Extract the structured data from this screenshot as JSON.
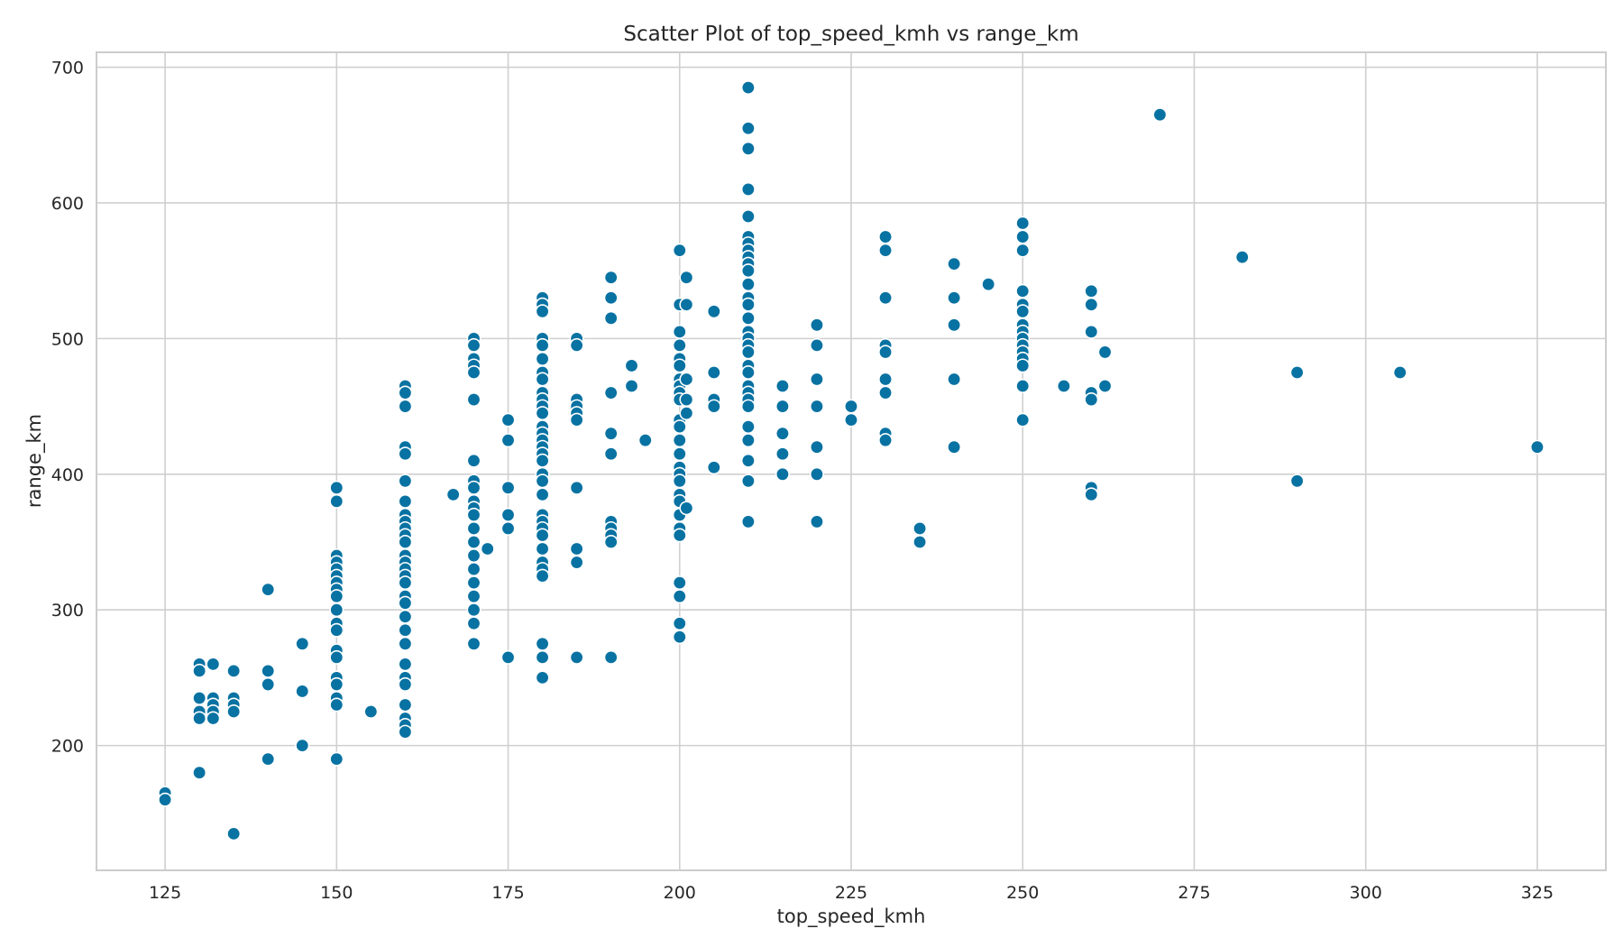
{
  "chart_data": {
    "type": "scatter",
    "title": "Scatter Plot of top_speed_kmh vs range_km",
    "xlabel": "top_speed_kmh",
    "ylabel": "range_km",
    "xlim": [
      115,
      335
    ],
    "ylim": [
      108,
      711
    ],
    "xticks": [
      125,
      150,
      175,
      200,
      225,
      250,
      275,
      300,
      325
    ],
    "yticks": [
      200,
      300,
      400,
      500,
      600,
      700
    ],
    "grid": true,
    "color": "#0872a2",
    "points": [
      [
        125,
        165
      ],
      [
        125,
        160
      ],
      [
        130,
        260
      ],
      [
        130,
        255
      ],
      [
        130,
        235
      ],
      [
        130,
        225
      ],
      [
        130,
        220
      ],
      [
        130,
        180
      ],
      [
        132,
        260
      ],
      [
        132,
        235
      ],
      [
        132,
        230
      ],
      [
        132,
        225
      ],
      [
        132,
        220
      ],
      [
        135,
        255
      ],
      [
        135,
        235
      ],
      [
        135,
        230
      ],
      [
        135,
        225
      ],
      [
        135,
        135
      ],
      [
        140,
        315
      ],
      [
        140,
        255
      ],
      [
        140,
        245
      ],
      [
        140,
        190
      ],
      [
        145,
        275
      ],
      [
        145,
        240
      ],
      [
        145,
        200
      ],
      [
        150,
        390
      ],
      [
        150,
        380
      ],
      [
        150,
        340
      ],
      [
        150,
        335
      ],
      [
        150,
        330
      ],
      [
        150,
        325
      ],
      [
        150,
        320
      ],
      [
        150,
        315
      ],
      [
        150,
        310
      ],
      [
        150,
        300
      ],
      [
        150,
        290
      ],
      [
        150,
        285
      ],
      [
        150,
        270
      ],
      [
        150,
        265
      ],
      [
        150,
        250
      ],
      [
        150,
        245
      ],
      [
        150,
        235
      ],
      [
        150,
        230
      ],
      [
        150,
        190
      ],
      [
        155,
        225
      ],
      [
        160,
        465
      ],
      [
        160,
        460
      ],
      [
        160,
        450
      ],
      [
        160,
        420
      ],
      [
        160,
        415
      ],
      [
        160,
        395
      ],
      [
        160,
        380
      ],
      [
        160,
        370
      ],
      [
        160,
        365
      ],
      [
        160,
        360
      ],
      [
        160,
        355
      ],
      [
        160,
        350
      ],
      [
        160,
        340
      ],
      [
        160,
        335
      ],
      [
        160,
        330
      ],
      [
        160,
        325
      ],
      [
        160,
        320
      ],
      [
        160,
        310
      ],
      [
        160,
        305
      ],
      [
        160,
        295
      ],
      [
        160,
        285
      ],
      [
        160,
        275
      ],
      [
        160,
        260
      ],
      [
        160,
        250
      ],
      [
        160,
        245
      ],
      [
        160,
        230
      ],
      [
        160,
        220
      ],
      [
        160,
        215
      ],
      [
        160,
        210
      ],
      [
        167,
        385
      ],
      [
        170,
        500
      ],
      [
        170,
        495
      ],
      [
        170,
        485
      ],
      [
        170,
        480
      ],
      [
        170,
        475
      ],
      [
        170,
        455
      ],
      [
        170,
        410
      ],
      [
        170,
        395
      ],
      [
        170,
        390
      ],
      [
        170,
        380
      ],
      [
        170,
        375
      ],
      [
        170,
        370
      ],
      [
        170,
        360
      ],
      [
        170,
        350
      ],
      [
        170,
        340
      ],
      [
        170,
        330
      ],
      [
        170,
        320
      ],
      [
        170,
        310
      ],
      [
        170,
        300
      ],
      [
        170,
        290
      ],
      [
        170,
        275
      ],
      [
        172,
        345
      ],
      [
        175,
        440
      ],
      [
        175,
        425
      ],
      [
        175,
        390
      ],
      [
        175,
        370
      ],
      [
        175,
        360
      ],
      [
        175,
        265
      ],
      [
        180,
        530
      ],
      [
        180,
        525
      ],
      [
        180,
        520
      ],
      [
        180,
        500
      ],
      [
        180,
        495
      ],
      [
        180,
        485
      ],
      [
        180,
        475
      ],
      [
        180,
        470
      ],
      [
        180,
        460
      ],
      [
        180,
        455
      ],
      [
        180,
        450
      ],
      [
        180,
        445
      ],
      [
        180,
        435
      ],
      [
        180,
        430
      ],
      [
        180,
        425
      ],
      [
        180,
        420
      ],
      [
        180,
        415
      ],
      [
        180,
        410
      ],
      [
        180,
        400
      ],
      [
        180,
        395
      ],
      [
        180,
        385
      ],
      [
        180,
        370
      ],
      [
        180,
        365
      ],
      [
        180,
        360
      ],
      [
        180,
        355
      ],
      [
        180,
        345
      ],
      [
        180,
        335
      ],
      [
        180,
        330
      ],
      [
        180,
        325
      ],
      [
        180,
        275
      ],
      [
        180,
        265
      ],
      [
        180,
        250
      ],
      [
        185,
        500
      ],
      [
        185,
        495
      ],
      [
        185,
        455
      ],
      [
        185,
        450
      ],
      [
        185,
        445
      ],
      [
        185,
        440
      ],
      [
        185,
        390
      ],
      [
        185,
        345
      ],
      [
        185,
        335
      ],
      [
        185,
        265
      ],
      [
        190,
        545
      ],
      [
        190,
        530
      ],
      [
        190,
        515
      ],
      [
        190,
        460
      ],
      [
        190,
        430
      ],
      [
        190,
        415
      ],
      [
        190,
        365
      ],
      [
        190,
        360
      ],
      [
        190,
        355
      ],
      [
        190,
        350
      ],
      [
        190,
        265
      ],
      [
        193,
        480
      ],
      [
        193,
        465
      ],
      [
        195,
        425
      ],
      [
        200,
        565
      ],
      [
        200,
        525
      ],
      [
        200,
        505
      ],
      [
        200,
        495
      ],
      [
        200,
        485
      ],
      [
        200,
        480
      ],
      [
        200,
        470
      ],
      [
        200,
        465
      ],
      [
        200,
        460
      ],
      [
        200,
        455
      ],
      [
        200,
        440
      ],
      [
        200,
        435
      ],
      [
        200,
        425
      ],
      [
        200,
        415
      ],
      [
        200,
        405
      ],
      [
        200,
        400
      ],
      [
        200,
        395
      ],
      [
        200,
        385
      ],
      [
        200,
        380
      ],
      [
        200,
        370
      ],
      [
        200,
        360
      ],
      [
        200,
        355
      ],
      [
        200,
        320
      ],
      [
        200,
        310
      ],
      [
        200,
        290
      ],
      [
        200,
        280
      ],
      [
        201,
        545
      ],
      [
        201,
        525
      ],
      [
        201,
        470
      ],
      [
        201,
        455
      ],
      [
        201,
        445
      ],
      [
        201,
        375
      ],
      [
        205,
        520
      ],
      [
        205,
        475
      ],
      [
        205,
        455
      ],
      [
        205,
        450
      ],
      [
        205,
        405
      ],
      [
        210,
        685
      ],
      [
        210,
        655
      ],
      [
        210,
        640
      ],
      [
        210,
        610
      ],
      [
        210,
        590
      ],
      [
        210,
        575
      ],
      [
        210,
        570
      ],
      [
        210,
        565
      ],
      [
        210,
        560
      ],
      [
        210,
        555
      ],
      [
        210,
        550
      ],
      [
        210,
        540
      ],
      [
        210,
        530
      ],
      [
        210,
        525
      ],
      [
        210,
        515
      ],
      [
        210,
        505
      ],
      [
        210,
        500
      ],
      [
        210,
        495
      ],
      [
        210,
        490
      ],
      [
        210,
        480
      ],
      [
        210,
        475
      ],
      [
        210,
        465
      ],
      [
        210,
        460
      ],
      [
        210,
        455
      ],
      [
        210,
        450
      ],
      [
        210,
        435
      ],
      [
        210,
        425
      ],
      [
        210,
        410
      ],
      [
        210,
        395
      ],
      [
        210,
        365
      ],
      [
        215,
        465
      ],
      [
        215,
        450
      ],
      [
        215,
        430
      ],
      [
        215,
        415
      ],
      [
        215,
        400
      ],
      [
        220,
        510
      ],
      [
        220,
        495
      ],
      [
        220,
        470
      ],
      [
        220,
        450
      ],
      [
        220,
        420
      ],
      [
        220,
        400
      ],
      [
        220,
        365
      ],
      [
        225,
        450
      ],
      [
        225,
        440
      ],
      [
        230,
        575
      ],
      [
        230,
        565
      ],
      [
        230,
        530
      ],
      [
        230,
        495
      ],
      [
        230,
        490
      ],
      [
        230,
        470
      ],
      [
        230,
        460
      ],
      [
        230,
        430
      ],
      [
        230,
        425
      ],
      [
        235,
        360
      ],
      [
        235,
        350
      ],
      [
        240,
        555
      ],
      [
        240,
        530
      ],
      [
        240,
        510
      ],
      [
        240,
        470
      ],
      [
        240,
        420
      ],
      [
        245,
        540
      ],
      [
        250,
        585
      ],
      [
        250,
        575
      ],
      [
        250,
        565
      ],
      [
        250,
        535
      ],
      [
        250,
        525
      ],
      [
        250,
        520
      ],
      [
        250,
        510
      ],
      [
        250,
        505
      ],
      [
        250,
        500
      ],
      [
        250,
        495
      ],
      [
        250,
        490
      ],
      [
        250,
        485
      ],
      [
        250,
        480
      ],
      [
        250,
        465
      ],
      [
        250,
        440
      ],
      [
        256,
        465
      ],
      [
        260,
        535
      ],
      [
        260,
        525
      ],
      [
        260,
        505
      ],
      [
        260,
        460
      ],
      [
        260,
        455
      ],
      [
        260,
        390
      ],
      [
        260,
        385
      ],
      [
        262,
        490
      ],
      [
        262,
        465
      ],
      [
        270,
        665
      ],
      [
        282,
        560
      ],
      [
        290,
        475
      ],
      [
        290,
        395
      ],
      [
        305,
        475
      ],
      [
        325,
        420
      ]
    ]
  }
}
